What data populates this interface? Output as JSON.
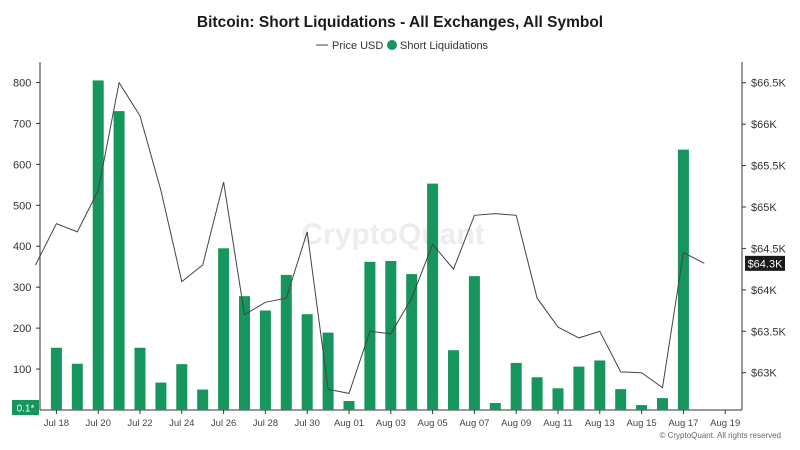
{
  "chart_data": {
    "type": "bar",
    "title": "Bitcoin: Short Liquidations - All Exchanges, All Symbol",
    "legend": {
      "placement": "top-center",
      "items": [
        {
          "name": "Price USD",
          "kind": "line",
          "color": "#444444"
        },
        {
          "name": "Short Liquidations",
          "kind": "bar",
          "color": "#16955c"
        }
      ]
    },
    "x_tick_labels": [
      "Jul 18",
      "Jul 20",
      "Jul 22",
      "Jul 24",
      "Jul 26",
      "Jul 28",
      "Jul 30",
      "Aug 01",
      "Aug 03",
      "Aug 05",
      "Aug 07",
      "Aug 09",
      "Aug 11",
      "Aug 13",
      "Aug 15",
      "Aug 17",
      "Aug 19"
    ],
    "categories": [
      "Jul 17",
      "Jul 18",
      "Jul 19",
      "Jul 20",
      "Jul 21",
      "Jul 22",
      "Jul 23",
      "Jul 24",
      "Jul 25",
      "Jul 26",
      "Jul 27",
      "Jul 28",
      "Jul 29",
      "Jul 30",
      "Jul 31",
      "Aug 01",
      "Aug 02",
      "Aug 03",
      "Aug 04",
      "Aug 05",
      "Aug 06",
      "Aug 07",
      "Aug 08",
      "Aug 09",
      "Aug 10",
      "Aug 11",
      "Aug 12",
      "Aug 13",
      "Aug 14",
      "Aug 15",
      "Aug 16",
      "Aug 17",
      "Aug 18"
    ],
    "series": [
      {
        "name": "Short Liquidations",
        "type": "bar",
        "axis": "left",
        "color": "#16955c",
        "values": [
          null,
          152,
          113,
          805,
          730,
          152,
          67,
          112,
          50,
          395,
          278,
          243,
          330,
          234,
          189,
          22,
          362,
          364,
          332,
          553,
          146,
          327,
          17,
          115,
          80,
          53,
          106,
          121,
          51,
          12,
          29,
          636,
          null
        ]
      },
      {
        "name": "Price USD",
        "type": "line",
        "axis": "right",
        "color": "#444444",
        "values": [
          64300,
          64800,
          64700,
          65200,
          66500,
          66100,
          65200,
          64100,
          64300,
          65300,
          63700,
          63850,
          63900,
          64700,
          62800,
          62750,
          63500,
          63470,
          63900,
          64550,
          64250,
          64900,
          64920,
          64900,
          63900,
          63550,
          63420,
          63500,
          63010,
          63000,
          62820,
          64450,
          64320
        ]
      }
    ],
    "left_axis": {
      "ticks": [
        100,
        200,
        300,
        400,
        500,
        600,
        700,
        800
      ],
      "min": 0,
      "max": 850,
      "min_label": "0.1*"
    },
    "right_axis": {
      "ticks": [
        "$63K",
        "$63.5K",
        "$64K",
        "$64.5K",
        "$65K",
        "$65.5K",
        "$66K",
        "$66.5K"
      ],
      "min": 62550,
      "max": 66750
    },
    "right_axis_values": [
      63000,
      63500,
      64000,
      64500,
      65000,
      65500,
      66000,
      66500
    ],
    "last_price_label": "$64.3K",
    "last_price_value": 64320,
    "watermark": "CryptoQuant",
    "credit": "© CryptoQuant. All rights reserved",
    "grid": false
  }
}
